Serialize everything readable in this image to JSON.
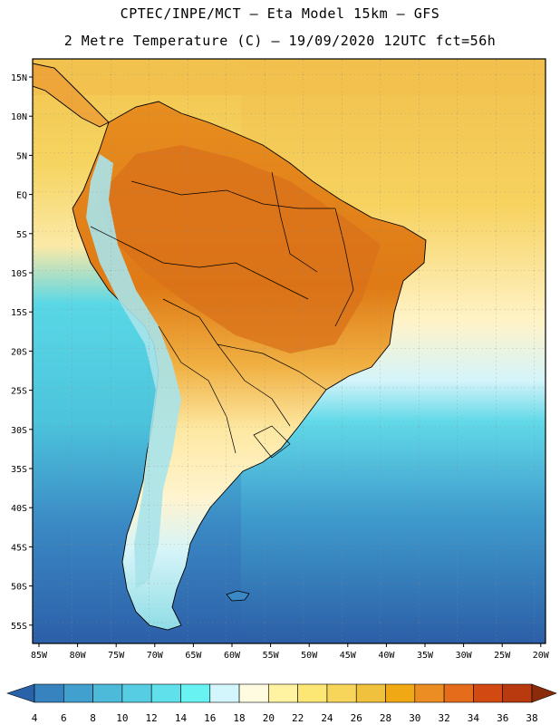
{
  "header": {
    "line1": "CPTEC/INPE/MCT –  Eta Model 15km – GFS",
    "line2": "2 Metre Temperature (C) – 19/09/2020 12UTC fct=56h"
  },
  "map": {
    "lat_labels": [
      "15N",
      "10N",
      "5N",
      "EQ",
      "5S",
      "10S",
      "15S",
      "20S",
      "25S",
      "30S",
      "35S",
      "40S",
      "45S",
      "50S",
      "55S"
    ],
    "lon_labels": [
      "85W",
      "80W",
      "75W",
      "70W",
      "65W",
      "60W",
      "55W",
      "50W",
      "45W",
      "40W",
      "35W",
      "30W",
      "25W",
      "20W"
    ],
    "colors": {
      "land_hot": "#e88a1e",
      "land_warm": "#f2c14e",
      "ocean_warm": "#f6cf58",
      "ocean_mild": "#fff3c8",
      "ocean_cool": "#5fd6e6",
      "ocean_cold": "#2f6fb5",
      "andes": "#a8e3ea"
    }
  },
  "colorbar": {
    "labels": [
      "4",
      "6",
      "8",
      "10",
      "12",
      "14",
      "16",
      "18",
      "20",
      "22",
      "24",
      "26",
      "28",
      "30",
      "32",
      "34",
      "36",
      "38"
    ],
    "colors": [
      "#2a62aa",
      "#3683c0",
      "#42a0cf",
      "#4dbad9",
      "#57cde3",
      "#5fe0ea",
      "#68f2f2",
      "#d2f6fb",
      "#fffbe0",
      "#fff2a0",
      "#fde774",
      "#f6d55a",
      "#efc13d",
      "#f0a914",
      "#eb8d22",
      "#e56c1a",
      "#d24912",
      "#b83a0e",
      "#8a2c0a"
    ]
  }
}
